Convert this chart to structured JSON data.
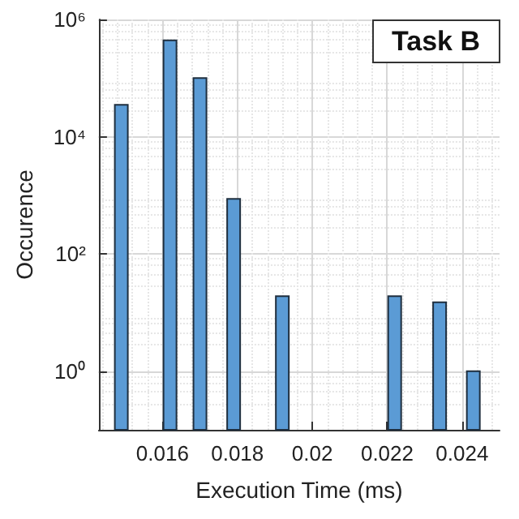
{
  "chart_data": {
    "type": "bar",
    "title": "Task B",
    "xlabel": "Execution Time (ms)",
    "ylabel": "Occurence",
    "x": [
      0.0149,
      0.0162,
      0.017,
      0.0179,
      0.0192,
      0.0222,
      0.0234,
      0.0243
    ],
    "values": [
      35000,
      440000,
      100000,
      870,
      19,
      19,
      15,
      1
    ],
    "color": "#5b9bd5",
    "xlim": [
      0.0143,
      0.025
    ],
    "xticks": [
      0.016,
      0.018,
      0.02,
      0.022,
      0.024
    ],
    "ylim": [
      0.1,
      1000000
    ],
    "yticks": [
      {
        "value": 1,
        "label": "10⁰"
      },
      {
        "value": 100,
        "label": "10²"
      },
      {
        "value": 10000,
        "label": "10⁴"
      },
      {
        "value": 1000000,
        "label": "10⁶"
      }
    ],
    "log": "y",
    "grid": true
  }
}
